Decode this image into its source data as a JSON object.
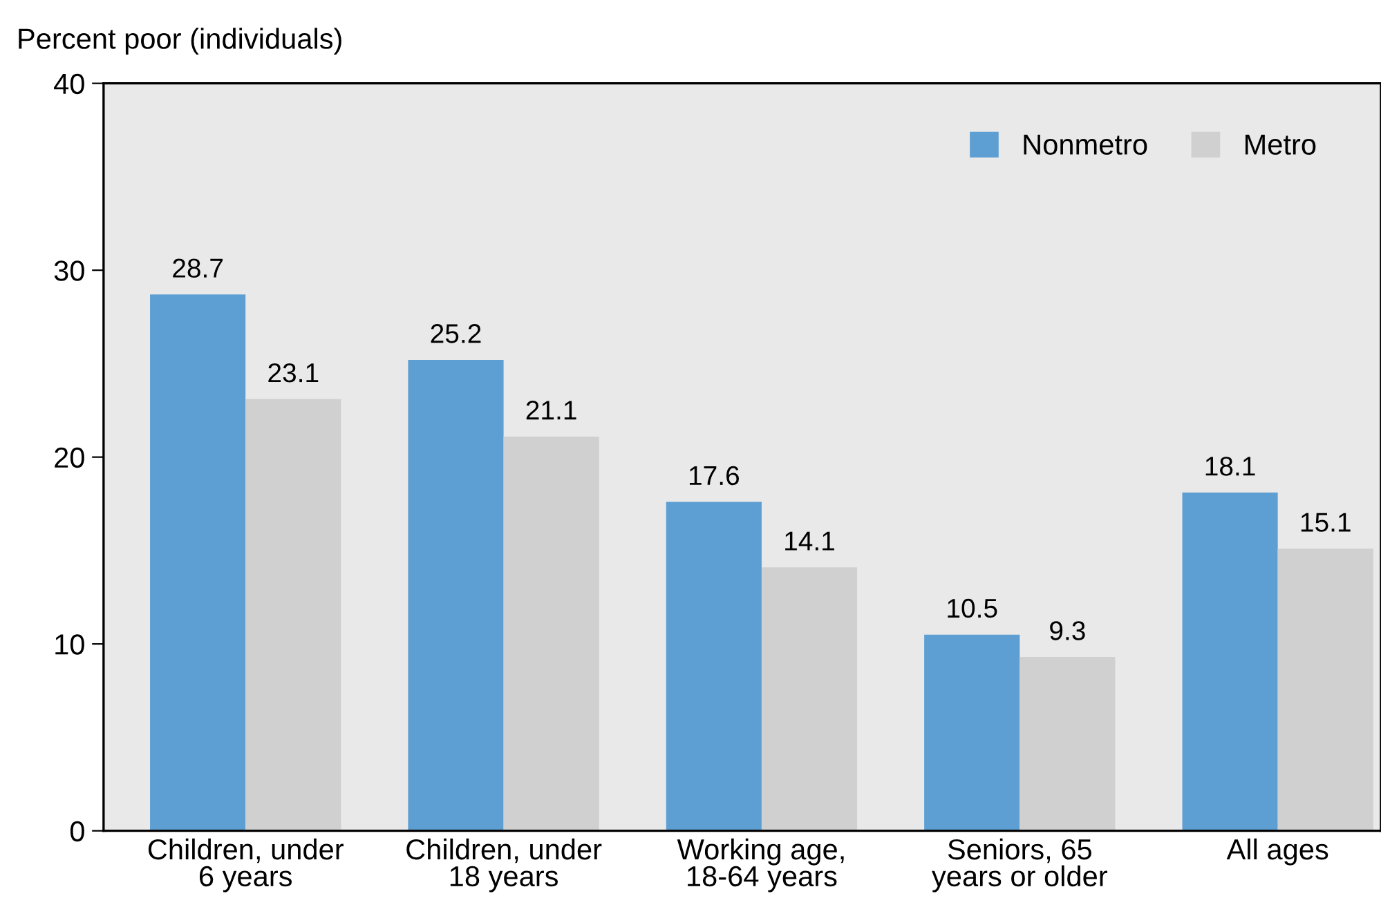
{
  "chart_data": {
    "type": "bar",
    "ylabel": "Percent poor (individuals)",
    "categories": [
      "Children, under\n6 years",
      "Children, under\n18 years",
      "Working age,\n18-64 years",
      "Seniors, 65\nyears or older",
      "All ages"
    ],
    "series": [
      {
        "name": "Nonmetro",
        "color": "#5e9fd3",
        "values": [
          28.7,
          25.2,
          17.6,
          10.5,
          18.1
        ]
      },
      {
        "name": "Metro",
        "color": "#d0d0d0",
        "values": [
          23.1,
          21.1,
          14.1,
          9.3,
          15.1
        ]
      }
    ],
    "ylim": [
      0,
      40
    ],
    "yticks": [
      0,
      10,
      20,
      30,
      40
    ],
    "data_labels": true,
    "legend": "top right",
    "grid": false
  }
}
